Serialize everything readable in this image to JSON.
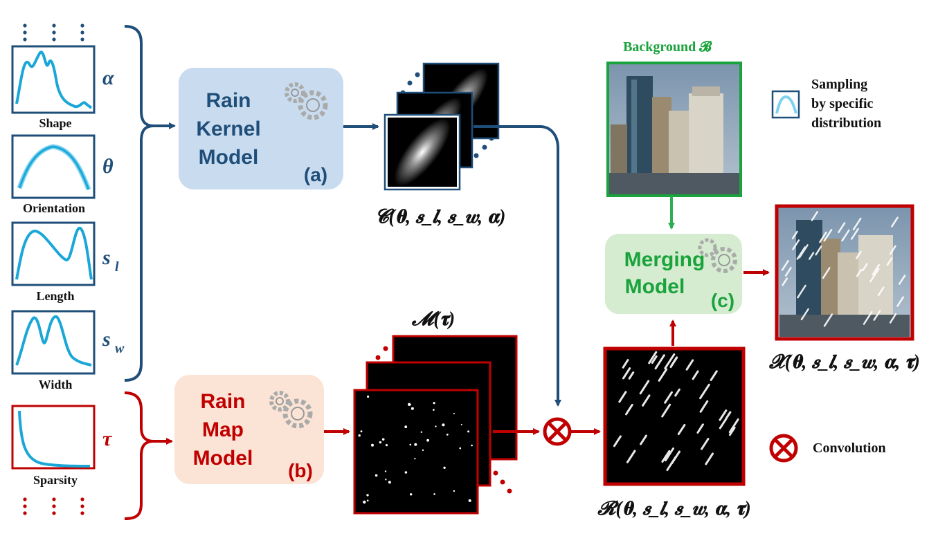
{
  "params": [
    {
      "label": "Shape",
      "symbol": "α"
    },
    {
      "label": "Orientation",
      "symbol": "θ"
    },
    {
      "label": "Length",
      "symbol": "s_l"
    },
    {
      "label": "Width",
      "symbol": "s_w"
    },
    {
      "label": "Sparsity",
      "symbol": "τ"
    }
  ],
  "modules": {
    "kernel": {
      "lines": [
        "Rain",
        "Kernel",
        "Model"
      ],
      "tag": "(a)"
    },
    "map": {
      "lines": [
        "Rain",
        "Map",
        "Model"
      ],
      "tag": "(b)"
    },
    "merging": {
      "lines": [
        "Merging",
        "Model"
      ],
      "tag": "(c)"
    }
  },
  "formulas": {
    "kernel": "𝓒(𝛉, 𝒔_𝒍, 𝒔_𝒘, 𝛂)",
    "map": "𝓜(𝛕)",
    "rain": "𝓡(𝛉, 𝒔_𝒍, 𝒔_𝒘, 𝛂, 𝛕)",
    "output": "𝓧(𝛉, 𝒔_𝒍, 𝒔_𝒘, 𝛂, 𝛕)"
  },
  "background_label": "Background 𝓑",
  "legend": {
    "sampling": [
      "Sampling",
      "by specific",
      "distribution"
    ],
    "convolution": "Convolution"
  },
  "colors": {
    "navy": "#1f4e79",
    "red": "#c00000",
    "green": "#00a651",
    "cyan": "#1aa7d8",
    "kernel_box": "#c9dcef",
    "map_box": "#fbe4d5",
    "merge_box": "#d5ecd0",
    "kernel_text": "#1f4e79",
    "map_text": "#c00000",
    "merge_text": "#1aa33c"
  }
}
